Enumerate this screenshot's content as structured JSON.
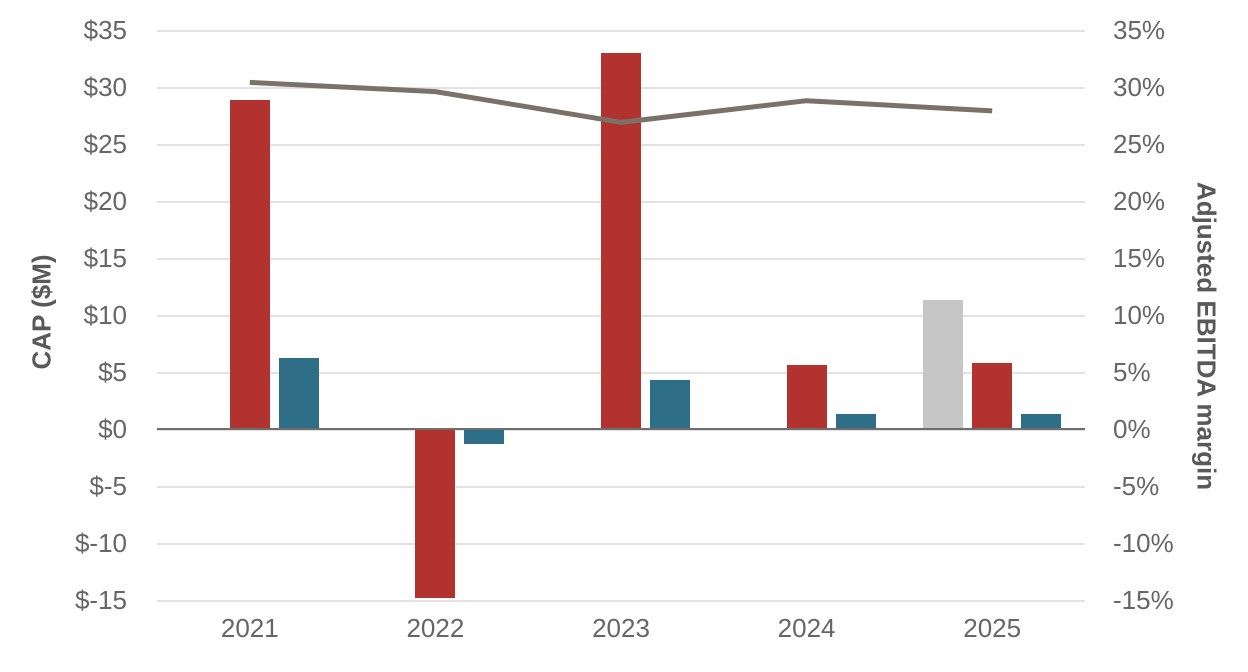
{
  "colors": {
    "background": "#ffffff",
    "red_bar": "#b23230",
    "teal_bar": "#2e6e87",
    "gray_bar": "#c6c6c6",
    "line": "#7a7168",
    "gridline": "#e2e2e2",
    "zero_line": "#6e6e6e",
    "tick_text": "#666666",
    "axis_title_text": "#595959"
  },
  "chart_data": {
    "type": "bar",
    "subtype": "clustered-bars-with-line-combo",
    "categories": [
      "2021",
      "2022",
      "2023",
      "2024",
      "2025"
    ],
    "series": [
      {
        "name": "gray-bar-series",
        "type": "bar",
        "color_key": "gray_bar",
        "axis": "left",
        "values": [
          null,
          null,
          null,
          null,
          11.3
        ]
      },
      {
        "name": "red-bar-series",
        "type": "bar",
        "color_key": "red_bar",
        "axis": "left",
        "values": [
          28.9,
          -14.8,
          33,
          5.6,
          5.8
        ]
      },
      {
        "name": "teal-bar-series",
        "type": "bar",
        "color_key": "teal_bar",
        "axis": "left",
        "values": [
          6.2,
          -1.3,
          4.3,
          1.3,
          1.3
        ]
      },
      {
        "name": "adjusted-ebitda-margin-line",
        "type": "line",
        "color_key": "line",
        "axis": "right",
        "values": [
          30.4,
          29.6,
          26.9,
          28.8,
          27.9
        ]
      }
    ],
    "left_axis": {
      "title": "CAP ($M)",
      "min": -15,
      "max": 35,
      "step": 5,
      "tick_labels": [
        "$35",
        "$30",
        "$25",
        "$20",
        "$15",
        "$10",
        "$5",
        "$0",
        "$-5",
        "$-10",
        "$-15"
      ]
    },
    "right_axis": {
      "title": "Adjusted EBITDA margin",
      "min": -15,
      "max": 35,
      "step": 5,
      "tick_labels": [
        "35%",
        "30%",
        "25%",
        "20%",
        "15%",
        "10%",
        "5%",
        "0%",
        "-5%",
        "-10%",
        "-15%"
      ]
    },
    "grid": true,
    "legend": false,
    "title": "",
    "xlabel": "",
    "ylabel_left": "CAP ($M)",
    "ylabel_right": "Adjusted EBITDA margin"
  }
}
